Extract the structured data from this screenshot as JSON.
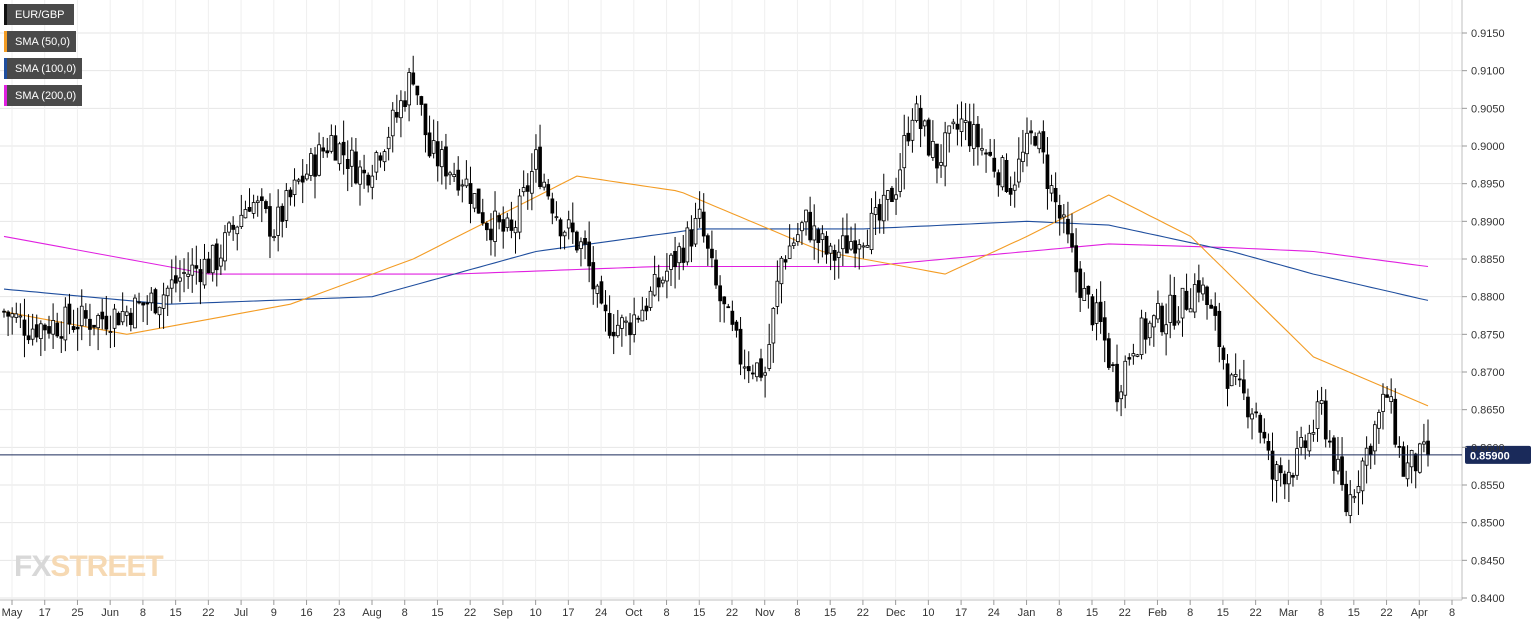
{
  "legend": [
    {
      "label": "EUR/GBP",
      "color": "#111111"
    },
    {
      "label": "SMA (50,0)",
      "color": "#f39c24"
    },
    {
      "label": "SMA (100,0)",
      "color": "#1f4e9e"
    },
    {
      "label": "SMA (200,0)",
      "color": "#e020e0"
    }
  ],
  "watermark": {
    "part1": "FX",
    "part2": "STREET"
  },
  "colors": {
    "bull": "#ffffff",
    "bear": "#000000",
    "sma50": "#f39c24",
    "sma100": "#1f4e9e",
    "sma200": "#e020e0",
    "price_line": "#1a2a5a",
    "price_label_bg": "#1a2a5a"
  },
  "chart_data": {
    "type": "candlestick",
    "instrument": "EUR/GBP",
    "timeframe": "daily",
    "ylim": [
      0.84,
      0.917
    ],
    "yticks": [
      "0.8400",
      "0.8450",
      "0.8500",
      "0.8550",
      "0.8600",
      "0.8650",
      "0.8700",
      "0.8750",
      "0.8800",
      "0.8850",
      "0.8900",
      "0.8950",
      "0.9000",
      "0.9050",
      "0.9100",
      "0.9150"
    ],
    "current_price": "0.85900",
    "x_labels": [
      "May",
      "17",
      "25",
      "Jun",
      "8",
      "15",
      "22",
      "Jul",
      "9",
      "16",
      "23",
      "Aug",
      "8",
      "15",
      "22",
      "Sep",
      "10",
      "17",
      "24",
      "Oct",
      "8",
      "15",
      "22",
      "Nov",
      "8",
      "15",
      "22",
      "Dec",
      "10",
      "17",
      "24",
      "Jan",
      "8",
      "15",
      "22",
      "Feb",
      "8",
      "15",
      "22",
      "Mar",
      "8",
      "15",
      "22",
      "Apr",
      "8"
    ],
    "anchors": [
      [
        0,
        0.878
      ],
      [
        6,
        0.876
      ],
      [
        14,
        0.8765
      ],
      [
        22,
        0.877
      ],
      [
        30,
        0.878
      ],
      [
        38,
        0.88
      ],
      [
        44,
        0.883
      ],
      [
        52,
        0.885
      ],
      [
        60,
        0.893
      ],
      [
        66,
        0.889
      ],
      [
        72,
        0.895
      ],
      [
        80,
        0.901
      ],
      [
        88,
        0.896
      ],
      [
        96,
        0.904
      ],
      [
        100,
        0.91
      ],
      [
        104,
        0.899
      ],
      [
        112,
        0.896
      ],
      [
        118,
        0.89
      ],
      [
        124,
        0.888
      ],
      [
        130,
        0.898
      ],
      [
        136,
        0.89
      ],
      [
        142,
        0.886
      ],
      [
        146,
        0.877
      ],
      [
        152,
        0.876
      ],
      [
        158,
        0.88
      ],
      [
        164,
        0.885
      ],
      [
        170,
        0.89
      ],
      [
        174,
        0.881
      ],
      [
        180,
        0.872
      ],
      [
        186,
        0.87
      ],
      [
        190,
        0.885
      ],
      [
        196,
        0.89
      ],
      [
        202,
        0.885
      ],
      [
        208,
        0.888
      ],
      [
        214,
        0.89
      ],
      [
        218,
        0.895
      ],
      [
        222,
        0.905
      ],
      [
        228,
        0.898
      ],
      [
        234,
        0.903
      ],
      [
        240,
        0.899
      ],
      [
        246,
        0.895
      ],
      [
        252,
        0.902
      ],
      [
        256,
        0.894
      ],
      [
        260,
        0.887
      ],
      [
        264,
        0.88
      ],
      [
        268,
        0.876
      ],
      [
        272,
        0.868
      ],
      [
        276,
        0.874
      ],
      [
        282,
        0.877
      ],
      [
        288,
        0.879
      ],
      [
        292,
        0.882
      ],
      [
        296,
        0.876
      ],
      [
        300,
        0.868
      ],
      [
        306,
        0.865
      ],
      [
        310,
        0.856
      ],
      [
        316,
        0.858
      ],
      [
        322,
        0.865
      ],
      [
        328,
        0.852
      ],
      [
        334,
        0.861
      ],
      [
        338,
        0.867
      ],
      [
        342,
        0.857
      ],
      [
        348,
        0.859
      ]
    ],
    "sma50": [
      [
        0,
        0.878
      ],
      [
        30,
        0.875
      ],
      [
        70,
        0.879
      ],
      [
        100,
        0.885
      ],
      [
        140,
        0.896
      ],
      [
        165,
        0.894
      ],
      [
        200,
        0.886
      ],
      [
        230,
        0.883
      ],
      [
        250,
        0.888
      ],
      [
        270,
        0.8935
      ],
      [
        290,
        0.888
      ],
      [
        320,
        0.872
      ],
      [
        348,
        0.8655
      ]
    ],
    "sma100": [
      [
        0,
        0.881
      ],
      [
        40,
        0.879
      ],
      [
        90,
        0.88
      ],
      [
        130,
        0.886
      ],
      [
        170,
        0.889
      ],
      [
        210,
        0.889
      ],
      [
        250,
        0.89
      ],
      [
        270,
        0.8895
      ],
      [
        300,
        0.886
      ],
      [
        320,
        0.883
      ],
      [
        348,
        0.8795
      ]
    ],
    "sma200": [
      [
        0,
        0.888
      ],
      [
        50,
        0.883
      ],
      [
        110,
        0.883
      ],
      [
        160,
        0.884
      ],
      [
        210,
        0.884
      ],
      [
        250,
        0.886
      ],
      [
        270,
        0.887
      ],
      [
        300,
        0.8865
      ],
      [
        320,
        0.886
      ],
      [
        348,
        0.884
      ]
    ]
  }
}
